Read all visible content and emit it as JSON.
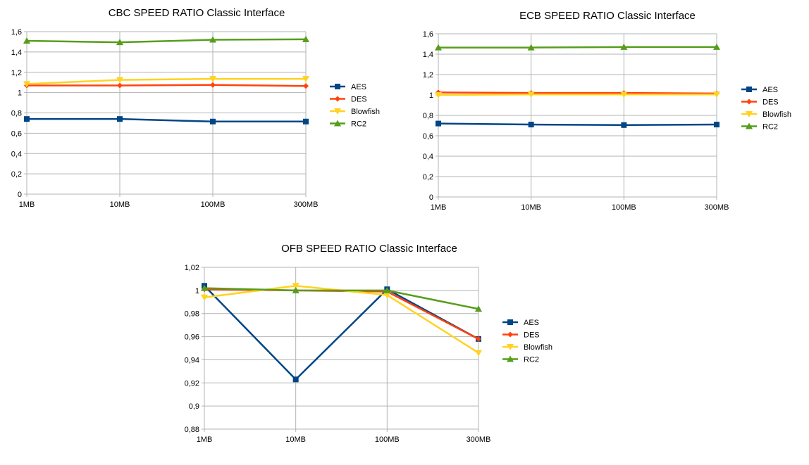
{
  "colors": {
    "AES": "#004586",
    "DES": "#ff420e",
    "Blowfish": "#ffd320",
    "RC2": "#579d1c"
  },
  "chart_data": [
    {
      "id": "cbc",
      "type": "line",
      "title": "CBC SPEED RATIO Classic Interface",
      "categories": [
        "1MB",
        "10MB",
        "100MB",
        "300MB"
      ],
      "ylim": [
        0,
        1.6
      ],
      "yticks": [
        "0",
        "0,2",
        "0,4",
        "0,6",
        "0,8",
        "1",
        "1,2",
        "1,4",
        "1,6"
      ],
      "ytick_values": [
        0,
        0.2,
        0.4,
        0.6,
        0.8,
        1.0,
        1.2,
        1.4,
        1.6
      ],
      "grid": true,
      "legend": "right",
      "series": [
        {
          "name": "AES",
          "marker": "square",
          "values": [
            0.74,
            0.74,
            0.715,
            0.715
          ]
        },
        {
          "name": "DES",
          "marker": "diamond",
          "values": [
            1.07,
            1.07,
            1.075,
            1.065
          ]
        },
        {
          "name": "Blowfish",
          "marker": "triangle-down",
          "values": [
            1.085,
            1.125,
            1.135,
            1.135
          ]
        },
        {
          "name": "RC2",
          "marker": "triangle-up",
          "values": [
            1.51,
            1.495,
            1.52,
            1.525
          ]
        }
      ]
    },
    {
      "id": "ecb",
      "type": "line",
      "title": "ECB SPEED RATIO Classic Interface",
      "categories": [
        "1MB",
        "10MB",
        "100MB",
        "300MB"
      ],
      "ylim": [
        0,
        1.6
      ],
      "yticks": [
        "0",
        "0,2",
        "0,4",
        "0,6",
        "0,8",
        "1",
        "1,2",
        "1,4",
        "1,6"
      ],
      "ytick_values": [
        0,
        0.2,
        0.4,
        0.6,
        0.8,
        1.0,
        1.2,
        1.4,
        1.6
      ],
      "grid": true,
      "legend": "right",
      "series": [
        {
          "name": "AES",
          "marker": "square",
          "values": [
            0.72,
            0.71,
            0.705,
            0.71
          ]
        },
        {
          "name": "DES",
          "marker": "diamond",
          "values": [
            1.025,
            1.02,
            1.02,
            1.015
          ]
        },
        {
          "name": "Blowfish",
          "marker": "triangle-down",
          "values": [
            1.0,
            1.005,
            1.005,
            1.005
          ]
        },
        {
          "name": "RC2",
          "marker": "triangle-up",
          "values": [
            1.465,
            1.465,
            1.47,
            1.47
          ]
        }
      ]
    },
    {
      "id": "ofb",
      "type": "line",
      "title": "OFB SPEED RATIO Classic Interface",
      "categories": [
        "1MB",
        "10MB",
        "100MB",
        "300MB"
      ],
      "ylim": [
        0.88,
        1.02
      ],
      "yticks": [
        "0,88",
        "0,9",
        "0,92",
        "0,94",
        "0,96",
        "0,98",
        "1",
        "1,02"
      ],
      "ytick_values": [
        0.88,
        0.9,
        0.92,
        0.94,
        0.96,
        0.98,
        1.0,
        1.02
      ],
      "grid": true,
      "legend": "right",
      "series": [
        {
          "name": "AES",
          "marker": "square",
          "values": [
            1.004,
            0.923,
            1.001,
            0.958
          ]
        },
        {
          "name": "DES",
          "marker": "diamond",
          "values": [
            1.001,
            1.0,
            0.999,
            0.958
          ]
        },
        {
          "name": "Blowfish",
          "marker": "triangle-down",
          "values": [
            0.994,
            1.004,
            0.996,
            0.946
          ]
        },
        {
          "name": "RC2",
          "marker": "triangle-up",
          "values": [
            1.002,
            1.0,
            1.0,
            0.984
          ]
        }
      ]
    }
  ]
}
